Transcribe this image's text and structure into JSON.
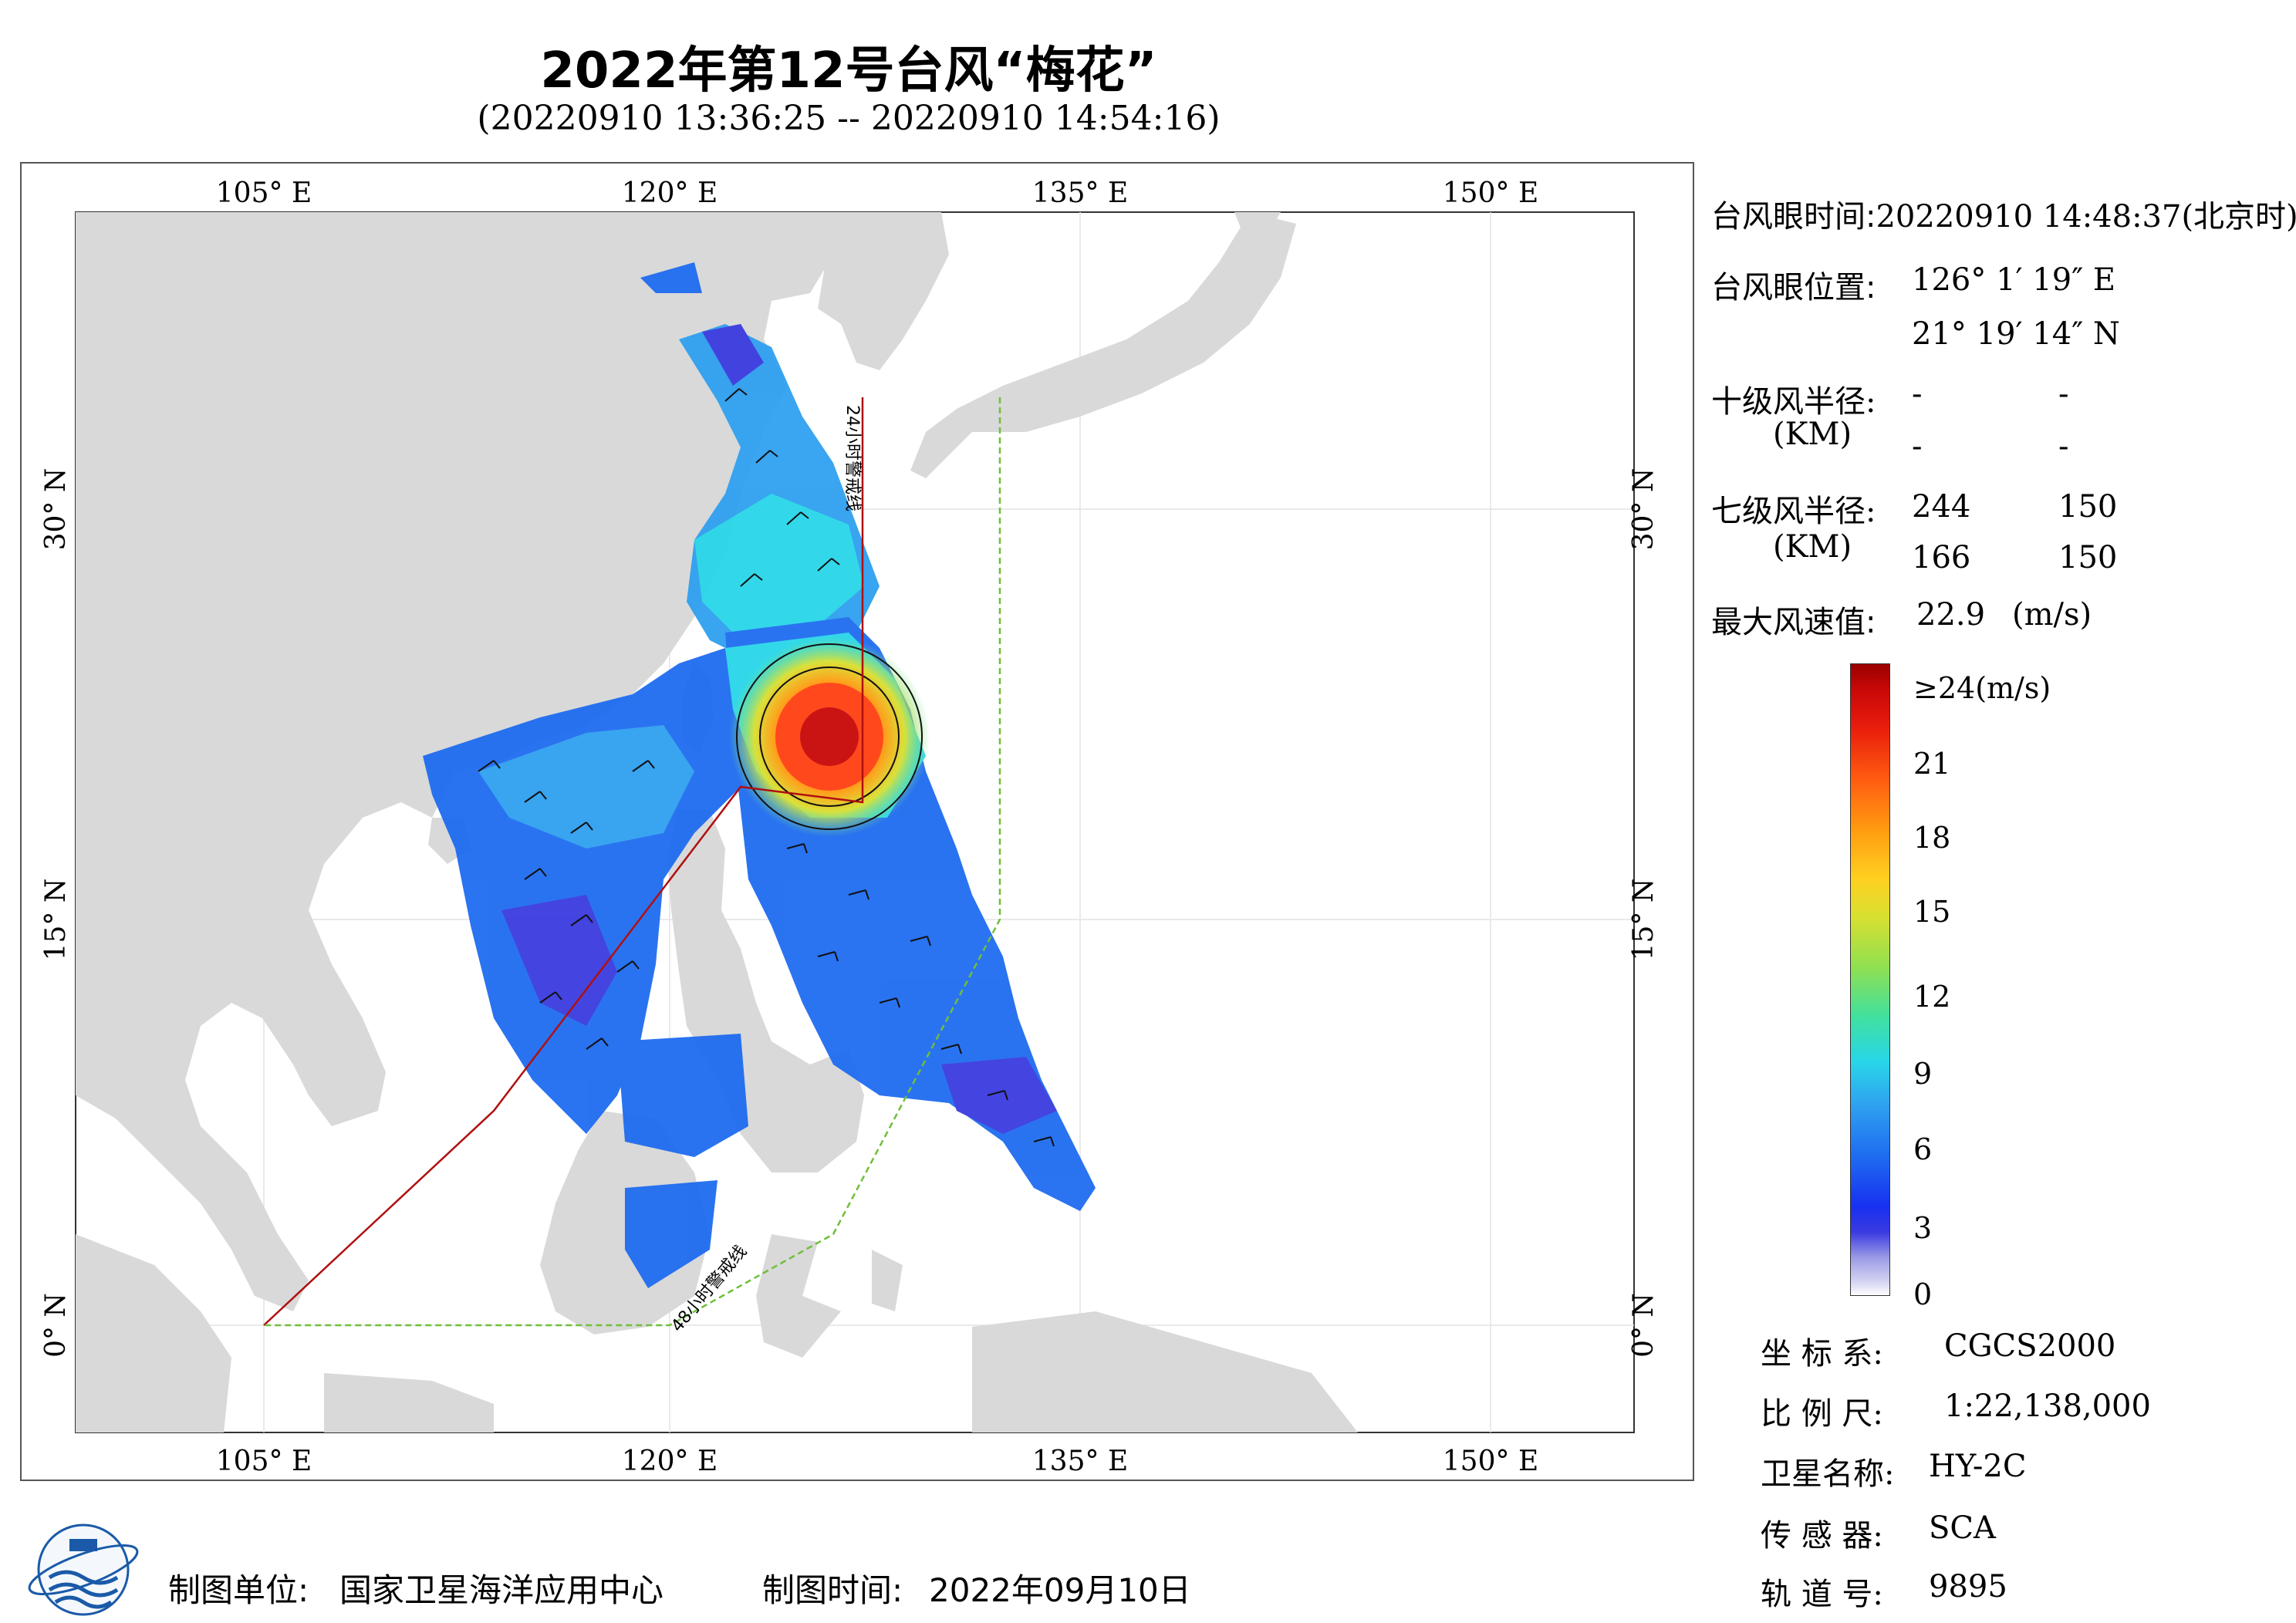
{
  "header": {
    "title": "2022年第12号台风“梅花”",
    "subtitle": "(20220910 13:36:25 -- 20220910 14:54:16)"
  },
  "map": {
    "lon_labels": [
      "105° E",
      "120° E",
      "135° E",
      "150° E"
    ],
    "lat_labels": [
      "30° N",
      "15° N",
      "0° N"
    ],
    "warning_24h": "24小时警戒线",
    "warning_48h": "48小时警戒线",
    "colors": {
      "land": "#d9d9d9",
      "sea": "#ffffff",
      "line_24h": "#b01010",
      "line_48h": "#6fbf3a"
    }
  },
  "info": {
    "eye_time_label": "台风眼时间:",
    "eye_time_value": "20220910 14:48:37(北京时)",
    "eye_pos_label": "台风眼位置:",
    "eye_lon": "126° 1′ 19″ E",
    "eye_lat": "21° 19′ 14″ N",
    "r10_label": "十级风半径:",
    "r10_unit": "(KM)",
    "r10_values": [
      "-",
      "-",
      "-",
      "-"
    ],
    "r7_label": "七级风半径:",
    "r7_unit": "(KM)",
    "r7_values": [
      "244",
      "150",
      "166",
      "150"
    ],
    "max_label": "最大风速值:",
    "max_value": "22.9",
    "max_unit": "(m/s)"
  },
  "colorbar": {
    "top_label": "≥24(m/s)",
    "ticks": [
      "21",
      "18",
      "15",
      "12",
      "9",
      "6",
      "3",
      "0"
    ]
  },
  "meta": {
    "crs_label": "坐 标 系:",
    "crs_value": "CGCS2000",
    "scale_label": "比 例 尺:",
    "scale_value": "1:22,138,000",
    "sat_label": "卫星名称:",
    "sat_value": "HY-2C",
    "sensor_label": "传 感 器:",
    "sensor_value": "SCA",
    "orbit_label": "轨 道 号:",
    "orbit_value": "9895"
  },
  "footer": {
    "unit_label": "制图单位:",
    "unit_value": "国家卫星海洋应用中心",
    "time_label": "制图时间:",
    "time_value": "2022年09月10日"
  }
}
